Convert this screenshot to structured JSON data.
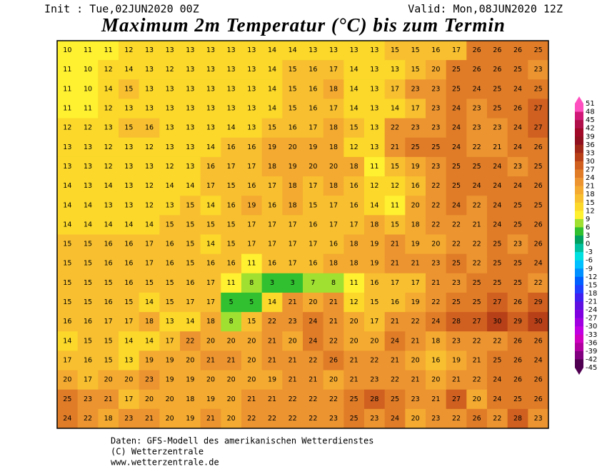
{
  "header": {
    "init": "Init : Tue,02JUN2020 00Z",
    "valid": "Valid: Mon,08JUN2020 12Z",
    "title": "Maximum 2m Temperatur (°C) bis zum Termin"
  },
  "footer": [
    "Daten: GFS-Modell des amerikanischen Wetterdienstes",
    "(C) Wetterzentrale",
    "www.wetterzentrale.de"
  ],
  "colorbar": {
    "levels": [
      51,
      48,
      45,
      42,
      39,
      36,
      33,
      30,
      27,
      24,
      21,
      18,
      15,
      12,
      9,
      6,
      3,
      0,
      -3,
      -6,
      -9,
      -12,
      -15,
      -18,
      -21,
      -24,
      -27,
      -30,
      -33,
      -36,
      -39,
      -42,
      -45
    ],
    "colors": [
      "#ff50c0",
      "#d01878",
      "#b0104a",
      "#a00a28",
      "#901020",
      "#a02818",
      "#b84018",
      "#d06020",
      "#e07c28",
      "#ec9430",
      "#f4aa30",
      "#f8c030",
      "#fbd82a",
      "#fff030",
      "#a0e030",
      "#30c030",
      "#00a060",
      "#00c0a0",
      "#00e0e0",
      "#00c0ff",
      "#0090ff",
      "#0060ff",
      "#2040ff",
      "#4020f0",
      "#6010e0",
      "#8000e0",
      "#a000e0",
      "#c000e0",
      "#d000c0",
      "#b000a0",
      "#800080",
      "#500050"
    ]
  },
  "grid": [
    [
      10,
      11,
      11,
      12,
      13,
      13,
      13,
      13,
      13,
      13,
      14,
      14,
      13,
      13,
      13,
      13,
      15,
      15,
      16,
      17,
      26,
      26,
      26,
      25
    ],
    [
      11,
      10,
      12,
      14,
      13,
      12,
      13,
      13,
      13,
      13,
      14,
      15,
      16,
      17,
      14,
      13,
      13,
      15,
      20,
      25,
      26,
      26,
      25,
      23
    ],
    [
      11,
      10,
      14,
      15,
      13,
      13,
      13,
      13,
      13,
      13,
      14,
      15,
      16,
      18,
      14,
      13,
      17,
      23,
      23,
      25,
      24,
      25,
      24,
      25
    ],
    [
      11,
      11,
      12,
      13,
      13,
      13,
      13,
      13,
      13,
      13,
      14,
      15,
      16,
      17,
      14,
      13,
      14,
      17,
      23,
      24,
      23,
      25,
      26,
      27
    ],
    [
      12,
      12,
      13,
      15,
      16,
      13,
      13,
      13,
      14,
      13,
      15,
      16,
      17,
      18,
      15,
      13,
      22,
      23,
      23,
      24,
      23,
      23,
      24,
      27
    ],
    [
      13,
      13,
      12,
      13,
      12,
      13,
      13,
      14,
      16,
      16,
      19,
      20,
      19,
      18,
      12,
      13,
      21,
      25,
      25,
      24,
      22,
      21,
      24,
      26
    ],
    [
      13,
      13,
      12,
      13,
      13,
      12,
      13,
      16,
      17,
      17,
      18,
      19,
      20,
      20,
      18,
      11,
      15,
      19,
      23,
      25,
      25,
      24,
      23,
      25
    ],
    [
      14,
      13,
      14,
      13,
      12,
      14,
      14,
      17,
      15,
      16,
      17,
      18,
      17,
      18,
      16,
      12,
      12,
      16,
      22,
      25,
      24,
      24,
      24,
      26
    ],
    [
      14,
      14,
      13,
      13,
      12,
      13,
      15,
      14,
      16,
      19,
      16,
      18,
      15,
      17,
      16,
      14,
      11,
      20,
      22,
      24,
      22,
      24,
      25,
      25
    ],
    [
      14,
      14,
      14,
      14,
      14,
      15,
      15,
      15,
      15,
      17,
      17,
      17,
      16,
      17,
      17,
      18,
      15,
      18,
      22,
      22,
      21,
      24,
      25,
      26
    ],
    [
      15,
      15,
      16,
      16,
      17,
      16,
      15,
      14,
      15,
      17,
      17,
      17,
      17,
      16,
      18,
      19,
      21,
      19,
      20,
      22,
      22,
      25,
      23,
      26
    ],
    [
      15,
      15,
      16,
      16,
      17,
      16,
      15,
      16,
      16,
      11,
      16,
      17,
      16,
      18,
      18,
      19,
      21,
      21,
      23,
      25,
      22,
      25,
      25,
      24
    ],
    [
      15,
      15,
      15,
      16,
      15,
      15,
      16,
      17,
      11,
      8,
      3,
      3,
      7,
      8,
      11,
      16,
      17,
      17,
      21,
      23,
      25,
      25,
      25,
      22
    ],
    [
      15,
      15,
      16,
      15,
      14,
      15,
      17,
      17,
      5,
      5,
      14,
      21,
      20,
      21,
      12,
      15,
      16,
      19,
      22,
      25,
      25,
      27,
      26,
      29
    ],
    [
      16,
      16,
      17,
      17,
      18,
      13,
      14,
      18,
      8,
      15,
      22,
      23,
      24,
      21,
      20,
      17,
      21,
      22,
      24,
      28,
      27,
      30,
      29,
      30
    ],
    [
      14,
      15,
      15,
      14,
      14,
      17,
      22,
      20,
      20,
      20,
      21,
      20,
      24,
      22,
      20,
      20,
      24,
      21,
      18,
      23,
      22,
      22,
      26,
      26
    ],
    [
      17,
      16,
      15,
      13,
      19,
      19,
      20,
      21,
      21,
      20,
      21,
      21,
      22,
      26,
      21,
      22,
      21,
      20,
      16,
      19,
      21,
      25,
      26,
      24
    ],
    [
      20,
      17,
      20,
      20,
      23,
      19,
      19,
      20,
      20,
      20,
      19,
      21,
      21,
      20,
      21,
      23,
      22,
      21,
      20,
      21,
      22,
      24,
      26,
      26
    ],
    [
      25,
      23,
      21,
      17,
      20,
      20,
      18,
      19,
      20,
      21,
      21,
      22,
      22,
      22,
      25,
      28,
      25,
      23,
      21,
      27,
      20,
      24,
      25,
      26
    ],
    [
      24,
      22,
      18,
      23,
      21,
      20,
      19,
      21,
      20,
      22,
      22,
      22,
      22,
      23,
      25,
      23,
      24,
      20,
      23,
      22,
      26,
      22,
      28,
      23
    ]
  ]
}
